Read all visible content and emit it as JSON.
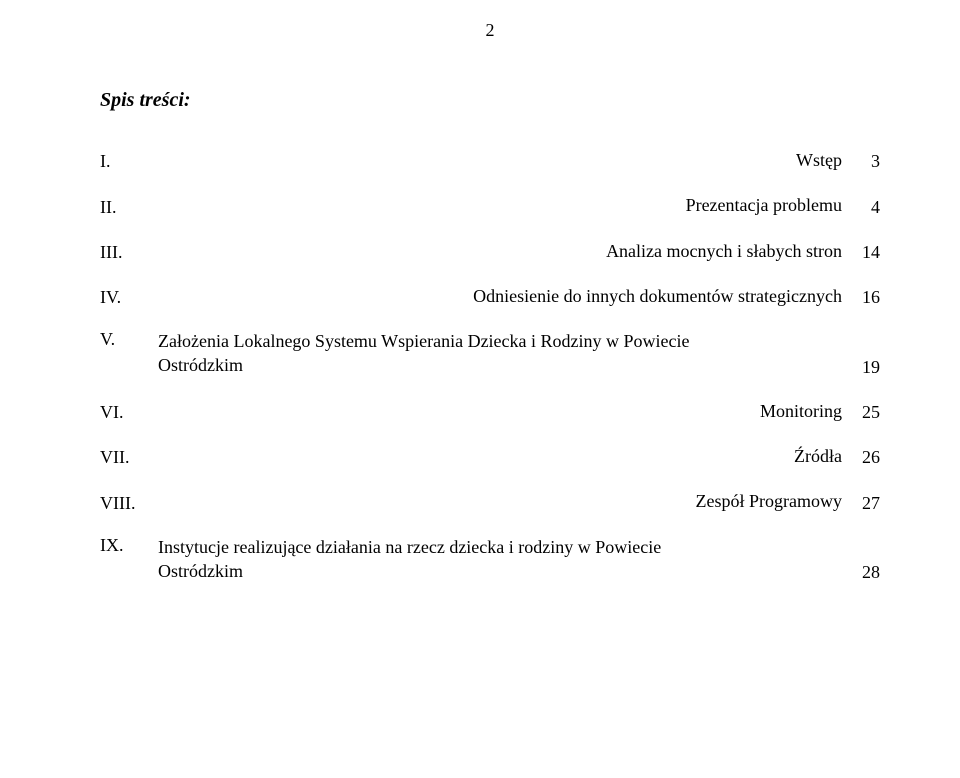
{
  "page_number": "2",
  "title": "Spis treści:",
  "font": {
    "family": "Times New Roman",
    "body_size_pt": 14,
    "title_size_pt": 15,
    "title_style": "italic bold"
  },
  "colors": {
    "text": "#000000",
    "background": "#ffffff"
  },
  "toc": [
    {
      "num": "I.",
      "label": "Wstęp",
      "page": "3"
    },
    {
      "num": "II.",
      "label": "Prezentacja problemu",
      "page": "4"
    },
    {
      "num": "III.",
      "label": "Analiza mocnych i słabych stron",
      "page": "14"
    },
    {
      "num": "IV.",
      "label": "Odniesienie do innych dokumentów strategicznych",
      "page": "16"
    },
    {
      "num": "V.",
      "label_line1": "Założenia Lokalnego Systemu Wspierania Dziecka i Rodziny w Powiecie",
      "label_line2": "Ostródzkim",
      "page": "19"
    },
    {
      "num": "VI.",
      "label": "Monitoring",
      "page": "25"
    },
    {
      "num": "VII.",
      "label": "Źródła",
      "page": "26"
    },
    {
      "num": "VIII.",
      "label": "Zespół Programowy",
      "page": "27"
    },
    {
      "num": "IX.",
      "label_line1": "Instytucje realizujące działania na rzecz dziecka i rodziny w Powiecie",
      "label_line2": "Ostródzkim",
      "page": "28"
    }
  ]
}
